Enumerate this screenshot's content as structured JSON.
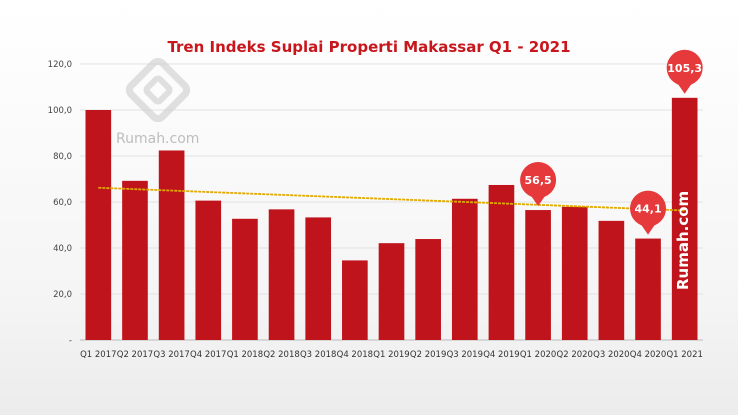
{
  "chart_data": {
    "type": "bar",
    "title": "Tren Indeks Suplai Properti Makassar Q1 - 2021",
    "categories": [
      "Q1 2017",
      "Q2 2017",
      "Q3 2017",
      "Q4 2017",
      "Q1 2018",
      "Q2 2018",
      "Q3 2018",
      "Q4 2018",
      "Q1 2019",
      "Q2 2019",
      "Q3 2019",
      "Q4 2019",
      "Q1 2020",
      "Q2 2020",
      "Q3 2020",
      "Q4 2020",
      "Q1 2021"
    ],
    "values": [
      100.0,
      69.2,
      82.4,
      60.6,
      52.7,
      56.8,
      53.3,
      34.6,
      42.1,
      43.9,
      61.4,
      67.4,
      56.5,
      57.9,
      51.8,
      44.1,
      105.3
    ],
    "ylim": [
      0,
      120
    ],
    "yticks": [
      "-",
      "20,0",
      "40,0",
      "60,0",
      "80,0",
      "100,0",
      "120,0"
    ],
    "trendline": {
      "start": 66.2,
      "end": 56.3,
      "color": "#e0a800"
    },
    "callouts": [
      {
        "category": "Q1 2020",
        "label": "56,5"
      },
      {
        "category": "Q4 2020",
        "label": "44,1"
      },
      {
        "category": "Q1 2021",
        "label": "105,3"
      }
    ],
    "grid": true,
    "bar_color": "#c0141c",
    "callout_color": "#e5393b"
  },
  "watermark": {
    "logo_icon": "rumah-house-logo-icon",
    "text": "Rumah.com",
    "vertical_text": "Rumah.com"
  }
}
